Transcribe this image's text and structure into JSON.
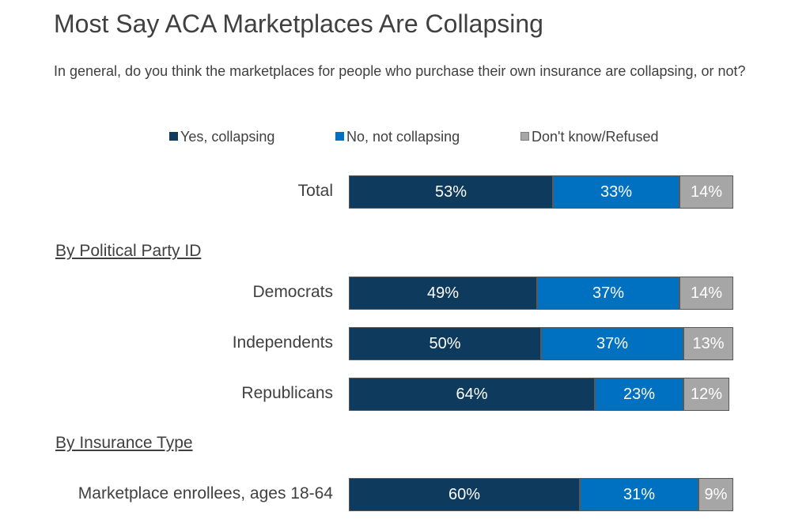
{
  "chart_data": {
    "type": "bar",
    "orientation": "horizontal",
    "stacked": true,
    "title": "Most Say ACA Marketplaces Are Collapsing",
    "subtitle": "In general, do you think the marketplaces for people who purchase their own insurance are collapsing, or not?",
    "legend": {
      "placement": "top",
      "items": [
        {
          "name": "Yes, collapsing",
          "color": "#0e3a5e"
        },
        {
          "name": "No, not collapsing",
          "color": "#0070c0"
        },
        {
          "name": "Don't know/Refused",
          "color": "#a6a6a6"
        }
      ]
    },
    "sections": [
      {
        "label": "",
        "rows": [
          0
        ]
      },
      {
        "label": "By Political Party ID",
        "rows": [
          1,
          2,
          3
        ]
      },
      {
        "label": "By Insurance Type",
        "rows": [
          4
        ]
      }
    ],
    "categories": [
      "Total",
      "Democrats",
      "Independents",
      "Republicans",
      "Marketplace enrollees, ages 18-64"
    ],
    "series": [
      {
        "name": "Yes, collapsing",
        "color": "#0e3a5e",
        "values": [
          53,
          49,
          50,
          64,
          60
        ]
      },
      {
        "name": "No, not collapsing",
        "color": "#0070c0",
        "values": [
          33,
          37,
          37,
          23,
          31
        ]
      },
      {
        "name": "Don't know/Refused",
        "color": "#a6a6a6",
        "values": [
          14,
          14,
          13,
          12,
          9
        ]
      }
    ],
    "value_suffix": "%",
    "xlim": [
      0,
      100
    ],
    "grid": false
  }
}
